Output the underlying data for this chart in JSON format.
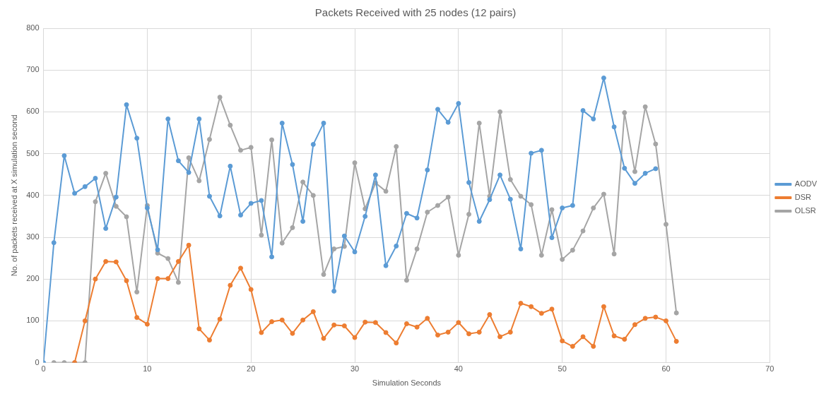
{
  "chart_data": {
    "type": "line",
    "title": "Packets Received with 25 nodes (12 pairs)",
    "xlabel": "Simulation Seconds",
    "ylabel": "No. of packets received at X simulation second",
    "x": [
      0,
      1,
      2,
      3,
      4,
      5,
      6,
      7,
      8,
      9,
      10,
      11,
      12,
      13,
      14,
      15,
      16,
      17,
      18,
      19,
      20,
      21,
      22,
      23,
      24,
      25,
      26,
      27,
      28,
      29,
      30,
      31,
      32,
      33,
      34,
      35,
      36,
      37,
      38,
      39,
      40,
      41,
      42,
      43,
      44,
      45,
      46,
      47,
      48,
      49,
      50,
      51,
      52,
      53,
      54,
      55,
      56,
      57,
      58,
      59,
      60,
      61
    ],
    "series": [
      {
        "name": "AODV",
        "color": "#5b9bd5",
        "values": [
          0,
          287,
          495,
          405,
          421,
          441,
          321,
          396,
          617,
          537,
          370,
          270,
          583,
          483,
          455,
          583,
          398,
          351,
          470,
          353,
          381,
          388,
          253,
          573,
          474,
          338,
          522,
          573,
          171,
          303,
          265,
          350,
          449,
          232,
          279,
          357,
          346,
          461,
          606,
          575,
          620,
          431,
          338,
          390,
          449,
          391,
          272,
          501,
          508,
          299,
          370,
          376,
          603,
          583,
          681,
          564,
          465,
          429,
          453,
          464,
          null,
          null
        ]
      },
      {
        "name": "DSR",
        "color": "#ed7d31",
        "values": [
          null,
          null,
          null,
          0,
          100,
          200,
          242,
          241,
          196,
          108,
          92,
          201,
          201,
          242,
          281,
          81,
          54,
          104,
          185,
          226,
          175,
          72,
          98,
          102,
          70,
          102,
          122,
          58,
          90,
          88,
          60,
          97,
          96,
          72,
          47,
          93,
          85,
          106,
          66,
          73,
          96,
          69,
          73,
          115,
          62,
          73,
          142,
          134,
          118,
          128,
          52,
          39,
          62,
          39,
          134,
          64,
          56,
          91,
          106,
          109,
          100,
          51
        ]
      },
      {
        "name": "OLSR",
        "color": "#a5a5a5",
        "values": [
          null,
          0,
          0,
          0,
          0,
          385,
          453,
          374,
          349,
          169,
          376,
          262,
          249,
          192,
          490,
          435,
          534,
          635,
          568,
          508,
          515,
          305,
          533,
          286,
          323,
          432,
          400,
          211,
          272,
          278,
          478,
          368,
          430,
          410,
          517,
          197,
          272,
          360,
          376,
          396,
          257,
          355,
          573,
          398,
          600,
          438,
          398,
          378,
          257,
          366,
          247,
          269,
          315,
          370,
          403,
          260,
          598,
          457,
          612,
          523,
          331,
          119
        ]
      }
    ],
    "xlim": [
      0,
      70
    ],
    "xticks": [
      0,
      10,
      20,
      30,
      40,
      50,
      60,
      70
    ],
    "ylim": [
      0,
      800
    ],
    "yticks": [
      0,
      100,
      200,
      300,
      400,
      500,
      600,
      700,
      800
    ],
    "grid": true,
    "legend": "right",
    "marker": "circle",
    "line_style": "solid"
  }
}
